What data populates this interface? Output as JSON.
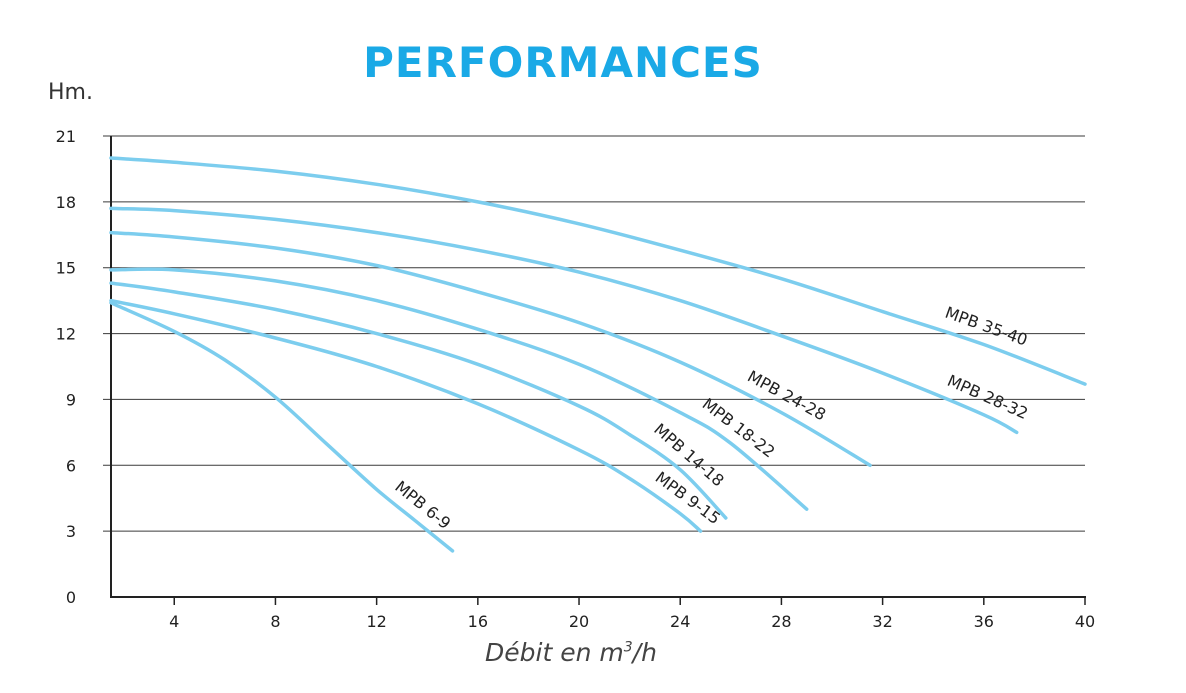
{
  "chart_data": {
    "type": "line",
    "title": "PERFORMANCES",
    "ylabel": "Hm.",
    "xlabel_prefix": "Débit en m",
    "xlabel_sup": "3",
    "xlabel_suffix": "/h",
    "xlim": [
      1.5,
      40
    ],
    "ylim": [
      0,
      21
    ],
    "x_ticks": [
      4,
      8,
      12,
      16,
      20,
      24,
      28,
      32,
      36,
      40
    ],
    "y_ticks": [
      0,
      3,
      6,
      9,
      12,
      15,
      18,
      21
    ],
    "grid": "horizontal",
    "line_color": "#7ccdee",
    "series": [
      {
        "name": "MPB 6-9",
        "label": "MPB 6-9",
        "x": [
          1.5,
          4,
          6,
          8,
          10,
          12,
          13.5,
          15
        ],
        "y": [
          13.4,
          12.1,
          10.8,
          9.1,
          7.0,
          4.9,
          3.5,
          2.1
        ]
      },
      {
        "name": "MPB 9-15",
        "label": "MPB 9-15",
        "x": [
          1.5,
          4,
          8,
          12,
          16,
          20,
          22,
          24,
          24.8
        ],
        "y": [
          13.5,
          12.9,
          11.8,
          10.5,
          8.8,
          6.7,
          5.4,
          3.8,
          3.0
        ]
      },
      {
        "name": "MPB 14-18",
        "label": "MPB 14-18",
        "x": [
          1.5,
          4,
          8,
          12,
          16,
          20,
          22,
          24,
          25.8
        ],
        "y": [
          14.3,
          13.9,
          13.1,
          12.0,
          10.6,
          8.7,
          7.4,
          5.8,
          3.6
        ]
      },
      {
        "name": "MPB 18-22",
        "label": "MPB 18-22",
        "x": [
          1.5,
          4,
          8,
          12,
          16,
          20,
          24,
          26,
          29
        ],
        "y": [
          14.9,
          14.9,
          14.4,
          13.5,
          12.2,
          10.6,
          8.4,
          7.0,
          4.0
        ]
      },
      {
        "name": "MPB 24-28",
        "label": "MPB 24-28",
        "x": [
          1.5,
          4,
          8,
          12,
          16,
          20,
          24,
          28,
          31.5
        ],
        "y": [
          16.6,
          16.4,
          15.9,
          15.1,
          13.9,
          12.5,
          10.7,
          8.4,
          6.0
        ]
      },
      {
        "name": "MPB 28-32",
        "label": "MPB 28-32",
        "x": [
          1.5,
          4,
          8,
          12,
          16,
          20,
          24,
          28,
          32,
          36,
          37.3
        ],
        "y": [
          17.7,
          17.6,
          17.2,
          16.6,
          15.8,
          14.8,
          13.5,
          11.9,
          10.2,
          8.3,
          7.5
        ]
      },
      {
        "name": "MPB 35-40",
        "label": "MPB 35-40",
        "x": [
          1.5,
          4,
          8,
          12,
          16,
          20,
          24,
          28,
          32,
          36,
          40
        ],
        "y": [
          20.0,
          19.8,
          19.4,
          18.8,
          18.0,
          17.0,
          15.8,
          14.5,
          13.0,
          11.5,
          9.7
        ]
      }
    ]
  }
}
